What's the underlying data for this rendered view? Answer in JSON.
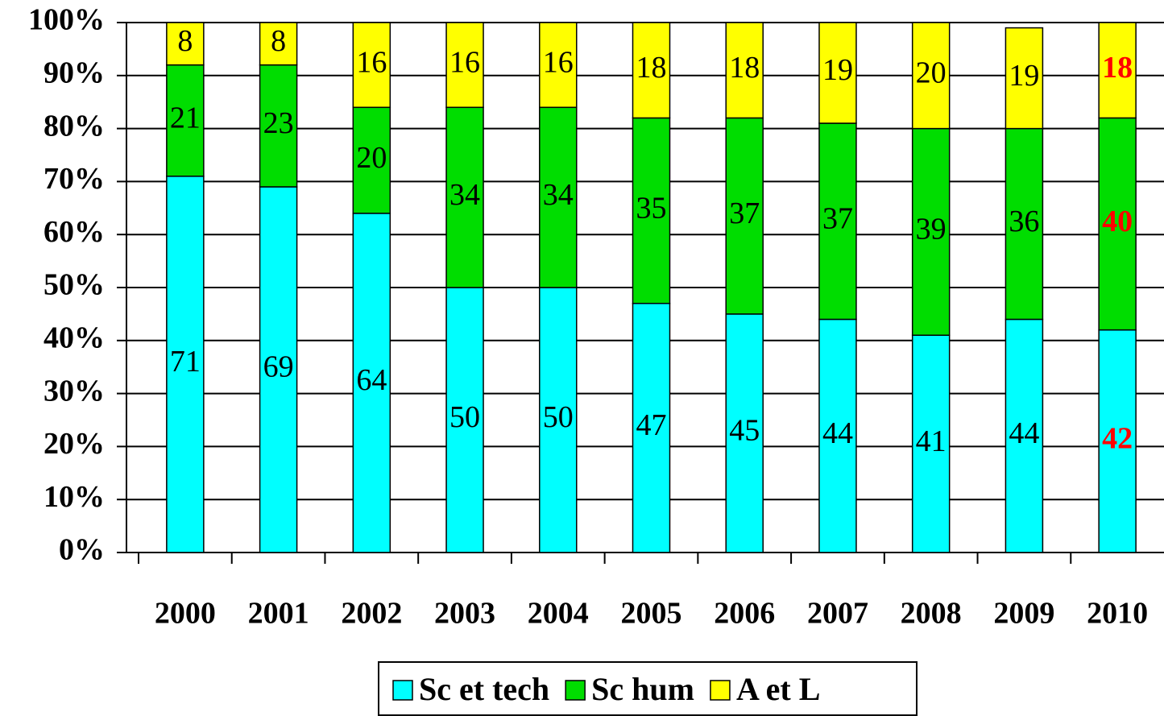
{
  "chart_data": {
    "type": "stacked_bar",
    "categories": [
      "2000",
      "2001",
      "2002",
      "2003",
      "2004",
      "2005",
      "2006",
      "2007",
      "2008",
      "2009",
      "2010"
    ],
    "series": [
      {
        "name": "Sc et tech",
        "color": "#00ffff",
        "values": [
          71,
          69,
          64,
          50,
          50,
          47,
          45,
          44,
          41,
          44,
          42
        ]
      },
      {
        "name": "Sc hum",
        "color": "#00dd00",
        "values": [
          21,
          23,
          20,
          34,
          34,
          35,
          37,
          37,
          39,
          36,
          40
        ]
      },
      {
        "name": "A et L",
        "color": "#ffff00",
        "values": [
          8,
          8,
          16,
          16,
          16,
          18,
          18,
          19,
          20,
          19,
          18
        ]
      }
    ],
    "ylim": [
      0,
      100
    ],
    "yticks": [
      {
        "value": 0,
        "label": "0%"
      },
      {
        "value": 10,
        "label": "10%"
      },
      {
        "value": 20,
        "label": "20%"
      },
      {
        "value": 30,
        "label": "30%"
      },
      {
        "value": 40,
        "label": "40%"
      },
      {
        "value": 50,
        "label": "50%"
      },
      {
        "value": 60,
        "label": "60%"
      },
      {
        "value": 70,
        "label": "70%"
      },
      {
        "value": 80,
        "label": "80%"
      },
      {
        "value": 90,
        "label": "90%"
      },
      {
        "value": 100,
        "label": "100%"
      }
    ],
    "grid": true,
    "legend": "bottom",
    "highlight_category": "2010",
    "highlight_color": "#ff0000"
  }
}
